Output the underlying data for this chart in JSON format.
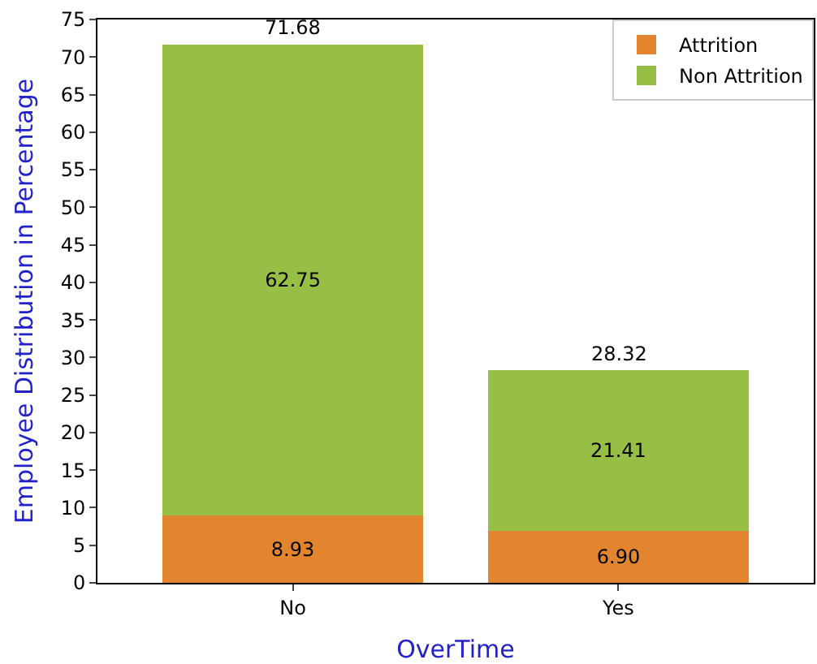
{
  "chart_data": {
    "type": "bar",
    "stacked": true,
    "xlabel": "OverTime",
    "ylabel": "Employee Distribution in Percentage",
    "categories": [
      "No",
      "Yes"
    ],
    "series": [
      {
        "name": "Attrition",
        "color": "#e3842f",
        "values": [
          8.93,
          6.9
        ],
        "value_labels": [
          "8.93",
          "6.90"
        ]
      },
      {
        "name": "Non Attrition",
        "color": "#98bf45",
        "values": [
          62.75,
          21.41
        ],
        "value_labels": [
          "62.75",
          "21.41"
        ]
      }
    ],
    "totals": [
      "71.68",
      "28.32"
    ],
    "ylim": [
      0,
      75
    ],
    "yticks": [
      0,
      5,
      10,
      15,
      20,
      25,
      30,
      35,
      40,
      45,
      50,
      55,
      60,
      65,
      70,
      75
    ],
    "grid": false,
    "legend": "top right"
  }
}
